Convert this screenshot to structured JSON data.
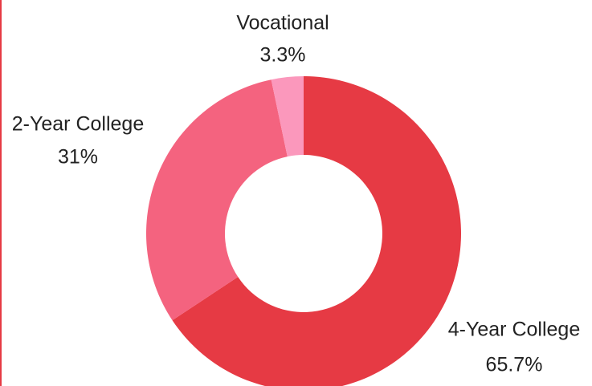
{
  "chart_data": {
    "type": "donut",
    "categories": [
      "4-Year College",
      "2-Year College",
      "Vocational"
    ],
    "values": [
      65.7,
      31,
      3.3
    ],
    "value_labels": [
      "65.7%",
      "31%",
      "3.3%"
    ],
    "colors": [
      "#e63a44",
      "#f4637f",
      "#fb98bc"
    ]
  }
}
